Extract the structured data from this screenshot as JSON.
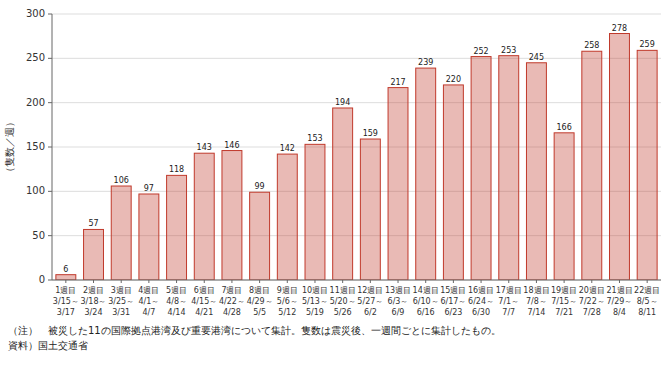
{
  "chart_data": {
    "type": "bar",
    "ylabel": "（隻数／週）",
    "categories": [
      "1週目\n3/15～\n3/17",
      "2週目\n3/18～\n3/24",
      "3週目\n3/25～\n3/31",
      "4週目\n4/1～\n4/7",
      "5週目\n4/8～\n4/14",
      "6週目\n4/15～\n4/21",
      "7週目\n4/22～\n4/28",
      "8週目\n4/29～\n5/5",
      "9週目\n5/6～\n5/12",
      "10週目\n5/13～\n5/19",
      "11週目\n5/20～\n5/26",
      "12週目\n5/27～\n6/2",
      "13週目\n6/3～\n6/9",
      "14週目\n6/10～\n6/16",
      "15週目\n6/17～\n6/23",
      "16週目\n6/24～\n6/30",
      "17週目\n7/1～\n7/7",
      "18週目\n7/8～\n7/14",
      "19週目\n7/15～\n7/21",
      "20週目\n7/22～\n7/28",
      "21週目\n7/29～\n8/4",
      "22週目\n8/5～\n8/11"
    ],
    "values": [
      6,
      57,
      106,
      97,
      118,
      143,
      146,
      99,
      142,
      153,
      194,
      159,
      217,
      239,
      220,
      252,
      253,
      245,
      166,
      258,
      278,
      259
    ],
    "color": "#c0392b",
    "ylim": [
      0,
      300
    ],
    "yticks": [
      0,
      50,
      100,
      150,
      200,
      250,
      300
    ],
    "grid": true,
    "data_labels": true,
    "annotations": [
      "（注）　被災した11の国際拠点港湾及び重要港湾について集計。隻数は震災後、一週間ごとに集計したもの。",
      "資料）国土交通省"
    ]
  }
}
